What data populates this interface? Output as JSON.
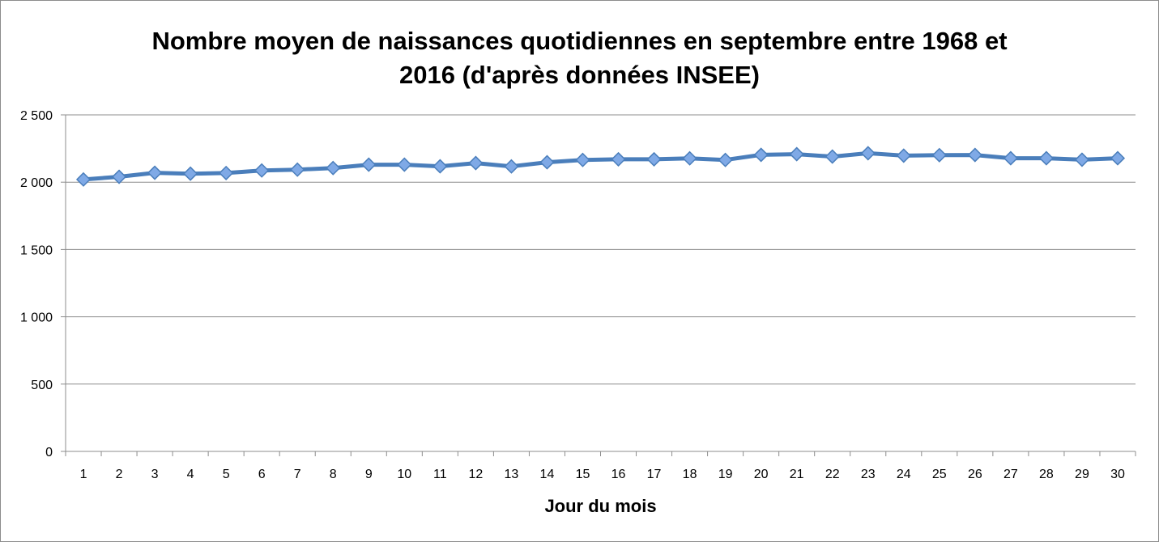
{
  "chart_data": {
    "type": "line",
    "title_lines": [
      "Nombre moyen de naissances quotidiennes en septembre entre 1968 et",
      "2016 (d'après données INSEE)"
    ],
    "xlabel": "Jour du mois",
    "ylabel": "",
    "categories": [
      "1",
      "2",
      "3",
      "4",
      "5",
      "6",
      "7",
      "8",
      "9",
      "10",
      "11",
      "12",
      "13",
      "14",
      "15",
      "16",
      "17",
      "18",
      "19",
      "20",
      "21",
      "22",
      "23",
      "24",
      "25",
      "26",
      "27",
      "28",
      "29",
      "30"
    ],
    "series": [
      {
        "values": [
          2020,
          2040,
          2070,
          2063,
          2068,
          2087,
          2093,
          2105,
          2130,
          2130,
          2118,
          2142,
          2117,
          2148,
          2165,
          2170,
          2170,
          2177,
          2165,
          2203,
          2208,
          2190,
          2215,
          2197,
          2201,
          2202,
          2178,
          2178,
          2167,
          2178
        ],
        "color": "#4a7ebb",
        "marker_color": "#7fa9e6"
      }
    ],
    "ylim": [
      0,
      2500
    ],
    "yticks": [
      0,
      500,
      1000,
      1500,
      2000,
      2500
    ],
    "ytick_labels": [
      "0",
      "500",
      "1 000",
      "1 500",
      "2 000",
      "2 500"
    ],
    "grid": true,
    "legend": "none"
  }
}
